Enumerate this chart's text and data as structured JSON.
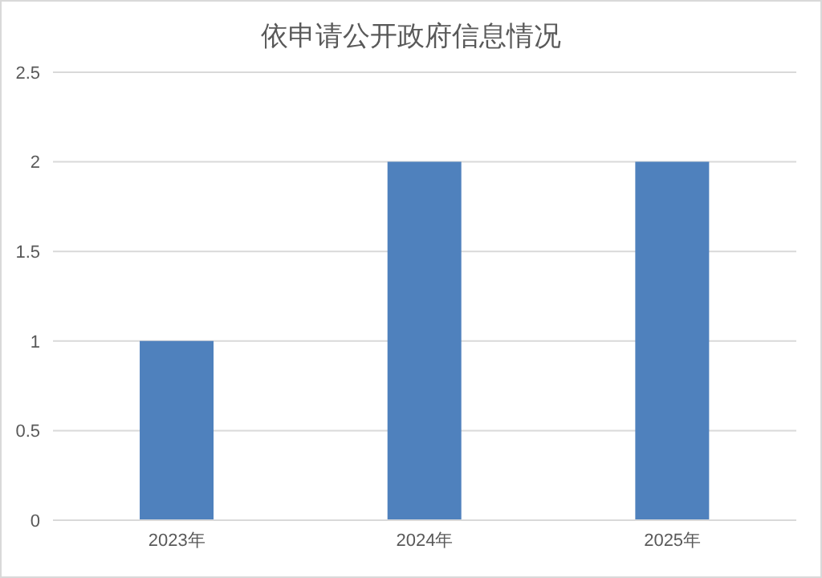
{
  "chart_data": {
    "type": "bar",
    "title": "依申请公开政府信息情况",
    "categories": [
      "2023年",
      "2024年",
      "2025年"
    ],
    "values": [
      1,
      2,
      2
    ],
    "color": "#4f81bd",
    "ylim": [
      0,
      2.5
    ],
    "yticks": [
      0,
      0.5,
      1,
      1.5,
      2,
      2.5
    ],
    "grid": "y"
  }
}
